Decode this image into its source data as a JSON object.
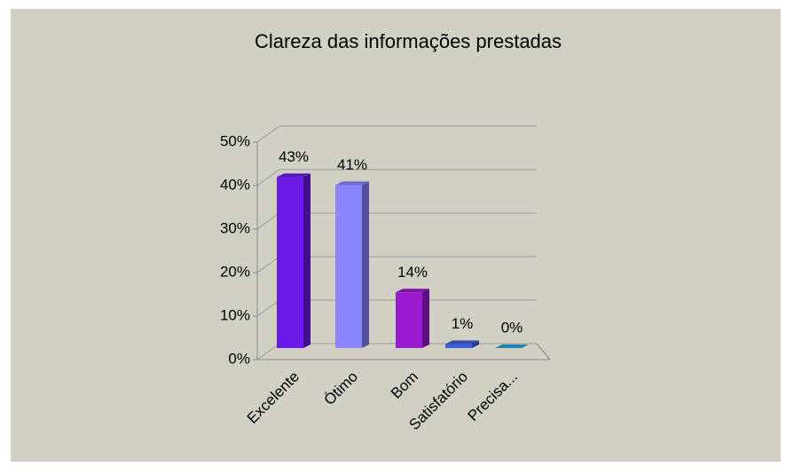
{
  "chart_data": {
    "type": "bar3d",
    "title": "Clareza das informações prestadas",
    "categories": [
      "Excelente",
      "Ótimo",
      "Bom",
      "Satisfatório",
      "Precisa..."
    ],
    "values": [
      43,
      41,
      14,
      1,
      0
    ],
    "value_labels": [
      "43%",
      "41%",
      "14%",
      "1%",
      "0%"
    ],
    "colors": [
      "#6a1be8",
      "#8a86ff",
      "#9a1ad0",
      "#3b5fd6",
      "#29a5e0"
    ],
    "ylim": [
      0,
      50
    ],
    "yticks": [
      {
        "value": 0,
        "label": "0%"
      },
      {
        "value": 10,
        "label": "10%"
      },
      {
        "value": 20,
        "label": "20%"
      },
      {
        "value": 30,
        "label": "30%"
      },
      {
        "value": 40,
        "label": "40%"
      },
      {
        "value": 50,
        "label": "50%"
      }
    ],
    "grid": true
  }
}
